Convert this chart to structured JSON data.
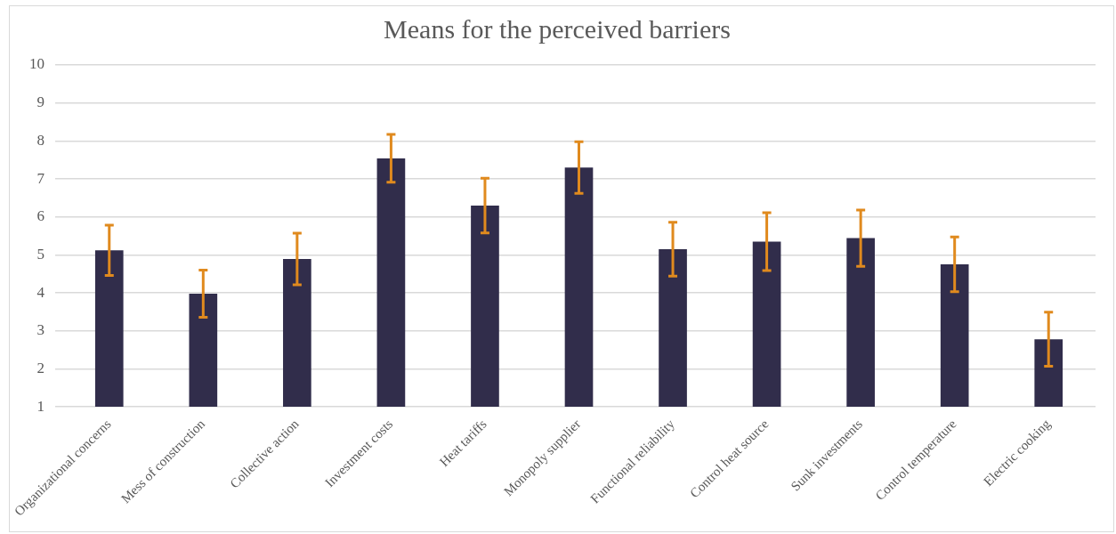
{
  "chart_data": {
    "type": "bar",
    "title": "Means for the perceived barriers",
    "categories": [
      "Organizational concerns",
      "Mess of construction",
      "Collective action",
      "Investment costs",
      "Heat tariffs",
      "Monopoly supplier",
      "Functional reliability",
      "Control heat source",
      "Sunk investments",
      "Control temperature",
      "Electric cooking"
    ],
    "series": [
      {
        "color": "#312d4b",
        "values": [
          5.12,
          3.98,
          4.89,
          7.54,
          6.3,
          7.3,
          5.15,
          5.35,
          5.44,
          4.75,
          2.78
        ],
        "errors": [
          0.66,
          0.62,
          0.68,
          0.63,
          0.72,
          0.68,
          0.71,
          0.76,
          0.74,
          0.72,
          0.71
        ]
      }
    ],
    "ylim": [
      1,
      10
    ],
    "yticks": [
      1,
      2,
      3,
      4,
      5,
      6,
      7,
      8,
      9,
      10
    ],
    "grid": "y",
    "legend": false
  }
}
